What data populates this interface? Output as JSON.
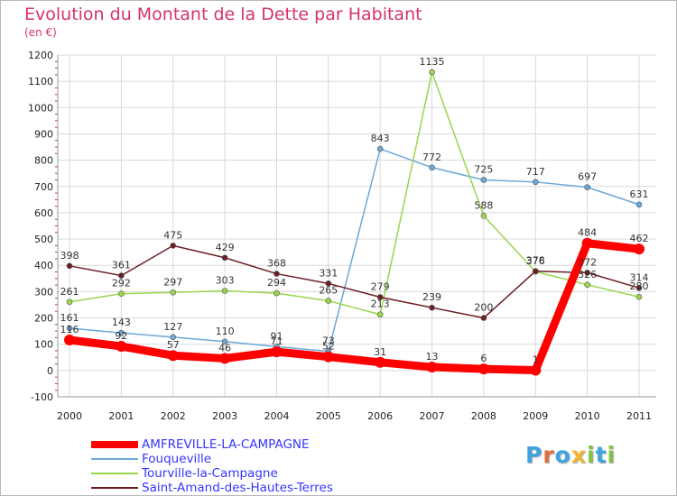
{
  "title": "Evolution du Montant de la Dette par Habitant",
  "subtitle": "(en €)",
  "logo": {
    "text": "Proxiti",
    "letters": [
      {
        "ch": "P",
        "color": "#3fa4e0"
      },
      {
        "ch": "r",
        "color": "#e0703a"
      },
      {
        "ch": "o",
        "color": "#3fa4e0"
      },
      {
        "ch": "x",
        "color": "#f2b630"
      },
      {
        "ch": "i",
        "color": "#83c341"
      },
      {
        "ch": "t",
        "color": "#3fa4e0"
      },
      {
        "ch": "i",
        "color": "#83c341"
      }
    ]
  },
  "chart_data": {
    "type": "line",
    "title": "Evolution du Montant de la Dette par Habitant",
    "subtitle": "(en €)",
    "xlabel": "",
    "ylabel": "",
    "categories": [
      "2000",
      "2001",
      "2002",
      "2003",
      "2004",
      "2005",
      "2006",
      "2007",
      "2008",
      "2009",
      "2010",
      "2011"
    ],
    "ylim": [
      -100,
      1200
    ],
    "yticks": [
      -100,
      0,
      100,
      200,
      300,
      400,
      500,
      600,
      700,
      800,
      900,
      1000,
      1100,
      1200
    ],
    "grid": true,
    "legend_position": "bottom-left",
    "series": [
      {
        "name": "AMFREVILLE-LA-CAMPAGNE",
        "color": "#ff0000",
        "width": 9,
        "marker": 6,
        "values": [
          116,
          92,
          57,
          46,
          71,
          52,
          31,
          13,
          6,
          1,
          484,
          462
        ]
      },
      {
        "name": "Fouqueville",
        "color": "#6ca8d8",
        "width": 1.5,
        "marker": 3,
        "values": [
          161,
          143,
          127,
          110,
          91,
          73,
          843,
          772,
          725,
          717,
          697,
          631
        ]
      },
      {
        "name": "Tourville-la-Campagne",
        "color": "#9ad54e",
        "width": 1.5,
        "marker": 3,
        "values": [
          261,
          292,
          297,
          303,
          294,
          265,
          213,
          1135,
          588,
          376,
          326,
          280
        ]
      },
      {
        "name": "Saint-Amand-des-Hautes-Terres",
        "color": "#6b1f24",
        "width": 1.5,
        "marker": 3,
        "values": [
          398,
          361,
          475,
          429,
          368,
          331,
          279,
          239,
          200,
          378,
          372,
          314
        ]
      }
    ]
  }
}
